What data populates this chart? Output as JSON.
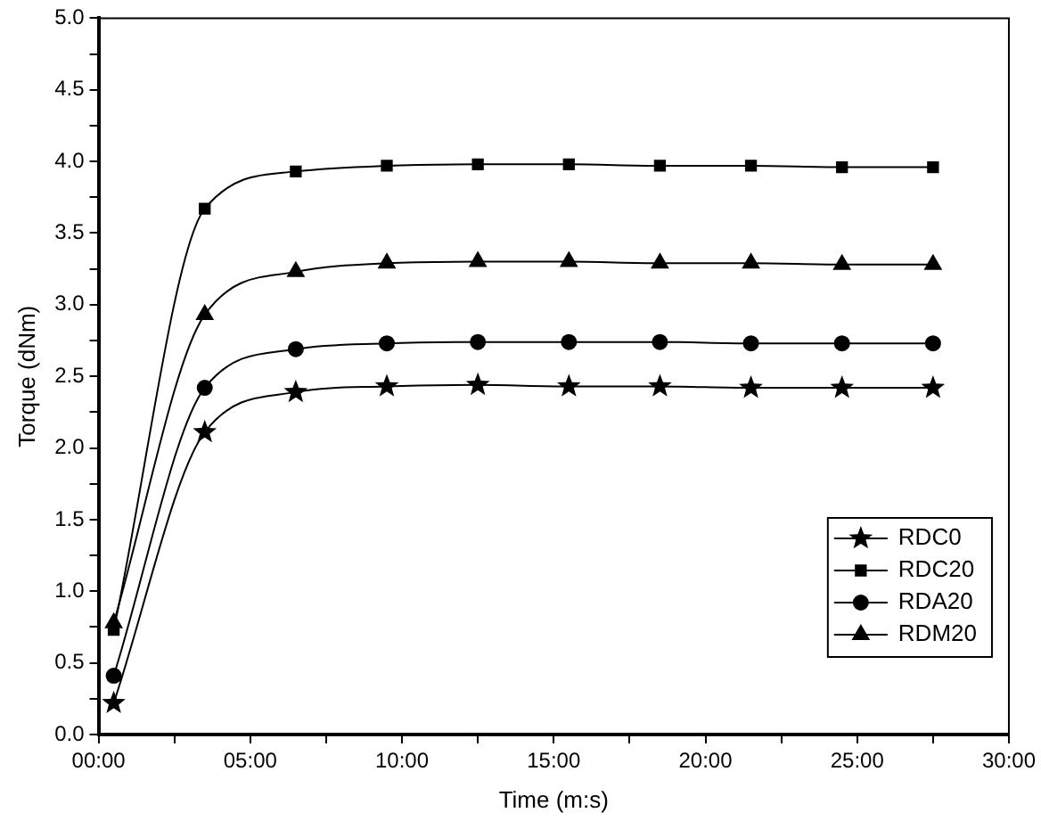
{
  "chart_data": {
    "type": "line",
    "xlabel": "Time (m:s)",
    "ylabel": "Torque (dNm)",
    "x": [
      0.5,
      3.5,
      6.5,
      9.5,
      12.5,
      15.5,
      18.5,
      21.5,
      24.5,
      27.5
    ],
    "series": [
      {
        "name": "RDC0",
        "color": "#000000",
        "marker": "star",
        "values": [
          0.22,
          2.11,
          2.39,
          2.43,
          2.44,
          2.43,
          2.43,
          2.42,
          2.42,
          2.42
        ]
      },
      {
        "name": "RDC20",
        "color": "#000000",
        "marker": "square",
        "values": [
          0.73,
          3.67,
          3.93,
          3.97,
          3.98,
          3.98,
          3.97,
          3.97,
          3.96,
          3.96
        ]
      },
      {
        "name": "RDA20",
        "color": "#000000",
        "marker": "circle",
        "values": [
          0.41,
          2.42,
          2.69,
          2.73,
          2.74,
          2.74,
          2.74,
          2.73,
          2.73,
          2.73
        ]
      },
      {
        "name": "RDM20",
        "color": "#000000",
        "marker": "triangle",
        "values": [
          0.78,
          2.93,
          3.23,
          3.29,
          3.3,
          3.3,
          3.29,
          3.29,
          3.28,
          3.28
        ]
      }
    ],
    "xlim": [
      0,
      30
    ],
    "xticks": [
      {
        "value": 0,
        "label": "00:00"
      },
      {
        "value": 2.5,
        "label": null
      },
      {
        "value": 5,
        "label": "05:00"
      },
      {
        "value": 7.5,
        "label": null
      },
      {
        "value": 10,
        "label": "10:00"
      },
      {
        "value": 12.5,
        "label": null
      },
      {
        "value": 15,
        "label": "15:00"
      },
      {
        "value": 17.5,
        "label": null
      },
      {
        "value": 20,
        "label": "20:00"
      },
      {
        "value": 22.5,
        "label": null
      },
      {
        "value": 25,
        "label": "25:00"
      },
      {
        "value": 27.5,
        "label": null
      },
      {
        "value": 30,
        "label": "30:00"
      }
    ],
    "ylim": [
      0,
      5
    ],
    "yticks": [
      {
        "value": 0,
        "label": "0.0"
      },
      {
        "value": 0.25,
        "label": null
      },
      {
        "value": 0.5,
        "label": "0.5"
      },
      {
        "value": 0.75,
        "label": null
      },
      {
        "value": 1,
        "label": "1.0"
      },
      {
        "value": 1.25,
        "label": null
      },
      {
        "value": 1.5,
        "label": "1.5"
      },
      {
        "value": 1.75,
        "label": null
      },
      {
        "value": 2,
        "label": "2.0"
      },
      {
        "value": 2.25,
        "label": null
      },
      {
        "value": 2.5,
        "label": "2.5"
      },
      {
        "value": 2.75,
        "label": null
      },
      {
        "value": 3,
        "label": "3.0"
      },
      {
        "value": 3.25,
        "label": null
      },
      {
        "value": 3.5,
        "label": "3.5"
      },
      {
        "value": 3.75,
        "label": null
      },
      {
        "value": 4,
        "label": "4.0"
      },
      {
        "value": 4.25,
        "label": null
      },
      {
        "value": 4.5,
        "label": "4.5"
      },
      {
        "value": 4.75,
        "label": null
      },
      {
        "value": 5,
        "label": "5.0"
      }
    ],
    "grid": false,
    "legend": "bottom right",
    "line_style": "solid"
  }
}
